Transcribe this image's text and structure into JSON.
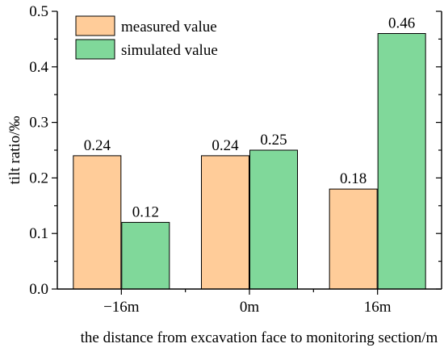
{
  "chart_data": {
    "type": "bar",
    "xlabel": "the distance from excavation face to monitoring section/m",
    "ylabel": "tilt ratio/‰",
    "categories": [
      "−16m",
      "0m",
      "16m"
    ],
    "series": [
      {
        "name": "measured value",
        "values": [
          0.24,
          0.24,
          0.18
        ],
        "labels": [
          "0.24",
          "0.24",
          "0.18"
        ],
        "color": "#FFCC99"
      },
      {
        "name": "simulated value",
        "values": [
          0.12,
          0.25,
          0.46
        ],
        "labels": [
          "0.12",
          "0.25",
          "0.46"
        ],
        "color": "#80D89A"
      }
    ],
    "ylim": [
      0,
      0.5
    ],
    "yticks": [
      0.0,
      0.1,
      0.2,
      0.3,
      0.4,
      0.5
    ],
    "ytick_labels": [
      "0.0",
      "0.1",
      "0.2",
      "0.3",
      "0.4",
      "0.5"
    ],
    "grid": false,
    "legend_position": "top-left"
  }
}
